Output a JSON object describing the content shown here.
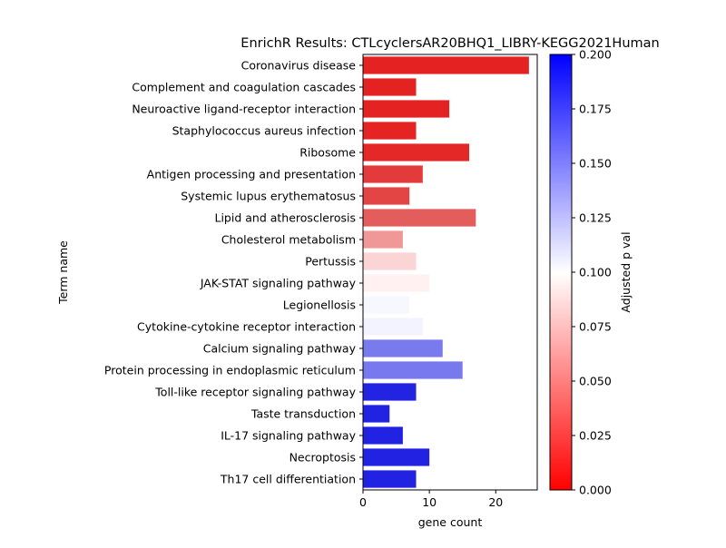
{
  "chart_data": {
    "type": "bar",
    "orientation": "horizontal",
    "title": "EnrichR Results: CTLcyclersAR20BHQ1_LIBRY-KEGG2021Human",
    "xlabel": "gene count",
    "ylabel": "Term name",
    "xlim": [
      0,
      26.25
    ],
    "x_ticks": [
      "0",
      "10",
      "20"
    ],
    "categories": [
      "Coronavirus disease",
      "Complement and coagulation cascades",
      "Neuroactive ligand-receptor interaction",
      "Staphylococcus aureus infection",
      "Ribosome",
      "Antigen processing and presentation",
      "Systemic lupus erythematosus",
      "Lipid and atherosclerosis",
      "Cholesterol metabolism",
      "Pertussis",
      "JAK-STAT signaling pathway",
      "Legionellosis",
      "Cytokine-cytokine receptor interaction",
      "Calcium signaling pathway",
      "Protein processing in endoplasmic reticulum",
      "Toll-like receptor signaling pathway",
      "Taste transduction",
      "IL-17 signaling pathway",
      "Necroptosis",
      "Th17 cell differentiation"
    ],
    "values": [
      25,
      8,
      13,
      8,
      16,
      9,
      7,
      17,
      6,
      8,
      10,
      7,
      9,
      12,
      15,
      8,
      4,
      6,
      10,
      8
    ],
    "colors": [
      "#e52222",
      "#e52222",
      "#e52222",
      "#e52323",
      "#e42828",
      "#e33b3b",
      "#e34444",
      "#e45d5d",
      "#f09898",
      "#fbd5d5",
      "#fff1f1",
      "#f7f7ff",
      "#f3f3ff",
      "#7a7aef",
      "#7979ef",
      "#2323e2",
      "#2222e2",
      "#2222e2",
      "#2222e2",
      "#2222e2"
    ],
    "colorbar": {
      "label": "Adjusted p val",
      "min": 0.0,
      "max": 0.2,
      "ticks": [
        "0.000",
        "0.025",
        "0.050",
        "0.075",
        "0.100",
        "0.125",
        "0.150",
        "0.175",
        "0.200"
      ],
      "colormap": [
        "#ff0000",
        "#ffffff",
        "#0000ff"
      ]
    },
    "grid": false
  }
}
